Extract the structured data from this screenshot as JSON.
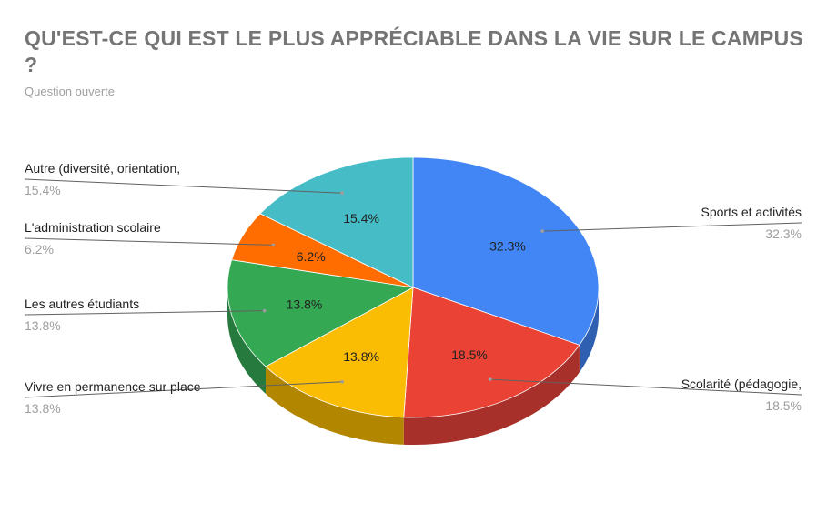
{
  "chart_data": {
    "type": "pie",
    "title": "QU'EST-CE QUI EST LE PLUS APPRÉCIABLE DANS LA VIE SUR LE CAMPUS ?",
    "subtitle": "Question ouverte",
    "three_d": true,
    "slices": [
      {
        "label": "Sports et activités",
        "value": 32.3,
        "value_label": "32.3%",
        "color": "#4285f4",
        "side_color": "#2f5fb0"
      },
      {
        "label": "Scolarité (pédagogie,",
        "value": 18.5,
        "value_label": "18.5%",
        "color": "#ea4335",
        "side_color": "#a8302a"
      },
      {
        "label": "Vivre en permanence sur place",
        "value": 13.8,
        "value_label": "13.8%",
        "color": "#fbbc04",
        "side_color": "#b38600"
      },
      {
        "label": "Les autres étudiants",
        "value": 13.8,
        "value_label": "13.8%",
        "color": "#34a853",
        "side_color": "#267a3d"
      },
      {
        "label": "L'administration scolaire",
        "value": 6.2,
        "value_label": "6.2%",
        "color": "#ff6d01",
        "side_color": "#b84e00"
      },
      {
        "label": "Autre (diversité, orientation,",
        "value": 15.4,
        "value_label": "15.4%",
        "color": "#46bdc6",
        "side_color": "#32878e"
      }
    ]
  }
}
